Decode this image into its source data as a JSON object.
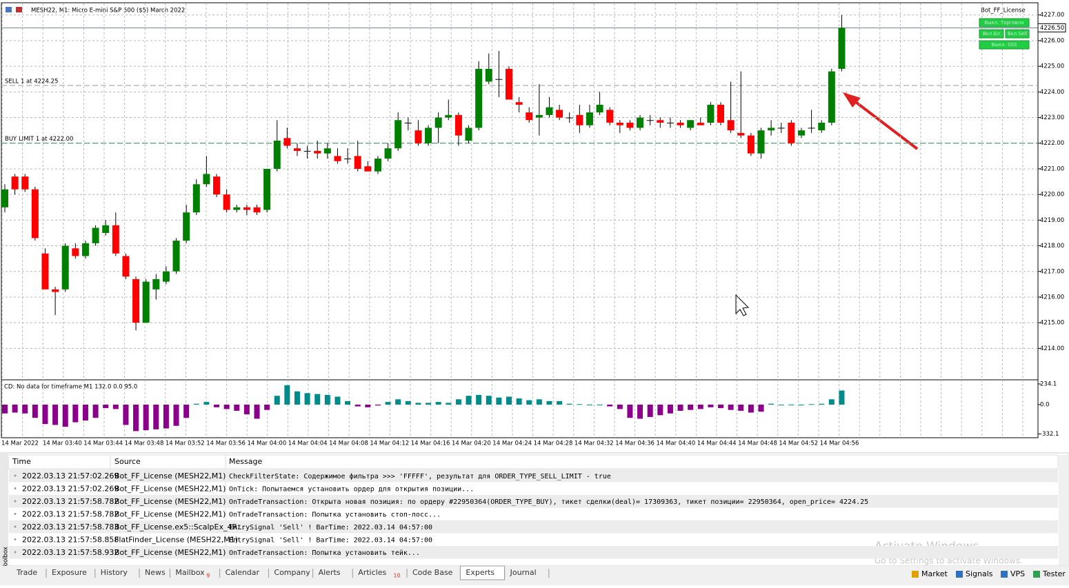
{
  "title": "MESH22, M1:  Micro E-mini S&P 500 ($5) March 2022",
  "panel": {
    "name": "Bot_FF_License",
    "buttons": [
      "Выкл. Торговля",
      "Вкл.Бл",
      "Вкл.Sell",
      "Выкл. SSS"
    ]
  },
  "chart_data": {
    "type": "candlestick",
    "ylim": [
      4212.8,
      4227.45
    ],
    "yticks": [
      {
        "value": 4227,
        "label": "4227.00"
      },
      {
        "value": 4226,
        "label": "4226.00"
      },
      {
        "value": 4225,
        "label": "4225.00"
      },
      {
        "value": 4224,
        "label": "4224.00"
      },
      {
        "value": 4223,
        "label": "4223.00"
      },
      {
        "value": 4222,
        "label": "4222.00"
      },
      {
        "value": 4221,
        "label": "4221.00"
      },
      {
        "value": 4220,
        "label": "4220.00"
      },
      {
        "value": 4219,
        "label": "4219.00"
      },
      {
        "value": 4218,
        "label": "4218.00"
      },
      {
        "value": 4217,
        "label": "4217.00"
      },
      {
        "value": 4216,
        "label": "4216.00"
      },
      {
        "value": 4215,
        "label": "4215.00"
      },
      {
        "value": 4214,
        "label": "4214.00"
      }
    ],
    "current_price": {
      "value": 4226.5,
      "label": "4226.50"
    },
    "levels": [
      {
        "label": "SELL 1 at 4224.25",
        "value": 4224.25
      },
      {
        "label": "BUY LIMIT 1 at 4222.00",
        "value": 4222.0
      }
    ],
    "grid": true,
    "up_color": "#008000",
    "down_color": "#ff0000",
    "time_labels": [
      "14 Mar 2022",
      "14 Mar 03:40",
      "14 Mar 03:44",
      "14 Mar 03:48",
      "14 Mar 03:52",
      "14 Mar 03:56",
      "14 Mar 04:00",
      "14 Mar 04:04",
      "14 Mar 04:08",
      "14 Mar 04:12",
      "14 Mar 04:16",
      "14 Mar 04:20",
      "14 Mar 04:24",
      "14 Mar 04:28",
      "14 Mar 04:32",
      "14 Mar 04:36",
      "14 Mar 04:40",
      "14 Mar 04:44",
      "14 Mar 04:48",
      "14 Mar 04:52",
      "14 Mar 04:56"
    ],
    "ohlc": [
      [
        4219.5,
        4220.4,
        4219.3,
        4220.2
      ],
      [
        4220.7,
        4220.8,
        4220.0,
        4220.2
      ],
      [
        4220.7,
        4220.8,
        4220.1,
        4220.2
      ],
      [
        4220.2,
        4220.3,
        4218.2,
        4218.3
      ],
      [
        4217.7,
        4217.9,
        4216.3,
        4216.3
      ],
      [
        4216.3,
        4216.4,
        4215.3,
        4216.2
      ],
      [
        4216.3,
        4218.1,
        4216.2,
        4218.0
      ],
      [
        4217.9,
        4218.1,
        4217.5,
        4217.6
      ],
      [
        4217.6,
        4218.2,
        4217.5,
        4218.1
      ],
      [
        4218.1,
        4218.8,
        4218.0,
        4218.7
      ],
      [
        4218.5,
        4219.0,
        4218.4,
        4218.8
      ],
      [
        4218.8,
        4219.3,
        4217.6,
        4217.7
      ],
      [
        4217.6,
        4217.7,
        4216.7,
        4216.8
      ],
      [
        4216.7,
        4216.8,
        4214.7,
        4215.0
      ],
      [
        4215.0,
        4216.7,
        4215.0,
        4216.6
      ],
      [
        4216.3,
        4216.9,
        4215.9,
        4216.7
      ],
      [
        4216.6,
        4217.2,
        4216.5,
        4217.0
      ],
      [
        4217.0,
        4218.3,
        4216.9,
        4218.2
      ],
      [
        4218.2,
        4219.6,
        4218.1,
        4219.3
      ],
      [
        4219.3,
        4220.6,
        4219.2,
        4220.4
      ],
      [
        4220.4,
        4221.5,
        4220.3,
        4220.8
      ],
      [
        4220.7,
        4220.8,
        4219.9,
        4220.0
      ],
      [
        4220.0,
        4220.2,
        4219.3,
        4219.4
      ],
      [
        4219.4,
        4219.6,
        4219.3,
        4219.5
      ],
      [
        4219.5,
        4219.6,
        4219.2,
        4219.4
      ],
      [
        4219.5,
        4219.6,
        4219.2,
        4219.3
      ],
      [
        4219.4,
        4221.0,
        4219.3,
        4221.0
      ],
      [
        4221.0,
        4222.9,
        4220.9,
        4222.1
      ],
      [
        4222.2,
        4222.6,
        4221.8,
        4221.9
      ],
      [
        4221.8,
        4222.0,
        4221.5,
        4221.7
      ],
      [
        4221.7,
        4221.9,
        4221.4,
        4221.7
      ],
      [
        4221.7,
        4222.1,
        4221.4,
        4221.6
      ],
      [
        4221.6,
        4222.0,
        4221.4,
        4221.8
      ],
      [
        4221.5,
        4221.8,
        4221.2,
        4221.3
      ],
      [
        4221.4,
        4221.8,
        4221.2,
        4221.4
      ],
      [
        4221.5,
        4222.1,
        4220.9,
        4221.0
      ],
      [
        4221.1,
        4221.3,
        4220.9,
        4220.9
      ],
      [
        4220.9,
        4221.5,
        4220.8,
        4221.4
      ],
      [
        4221.4,
        4222.0,
        4221.3,
        4221.8
      ],
      [
        4221.8,
        4223.2,
        4221.7,
        4222.9
      ],
      [
        4222.8,
        4223.0,
        4222.5,
        4222.8
      ],
      [
        4222.5,
        4222.9,
        4221.9,
        4222.0
      ],
      [
        4222.0,
        4222.7,
        4221.9,
        4222.6
      ],
      [
        4222.6,
        4223.2,
        4222.0,
        4223.0
      ],
      [
        4223.0,
        4223.7,
        4222.9,
        4223.1
      ],
      [
        4223.1,
        4223.2,
        4221.9,
        4222.3
      ],
      [
        4222.1,
        4222.7,
        4222.0,
        4222.6
      ],
      [
        4222.6,
        4225.2,
        4222.5,
        4224.9
      ],
      [
        4224.4,
        4225.5,
        4224.3,
        4224.9
      ],
      [
        4224.5,
        4225.6,
        4223.8,
        4224.5
      ],
      [
        4224.9,
        4225.0,
        4223.7,
        4223.7
      ],
      [
        4223.6,
        4223.8,
        4223.2,
        4223.5
      ],
      [
        4223.2,
        4223.4,
        4222.8,
        4222.9
      ],
      [
        4223.0,
        4224.3,
        4222.3,
        4223.1
      ],
      [
        4223.1,
        4223.8,
        4223.0,
        4223.4
      ],
      [
        4223.3,
        4223.5,
        4222.9,
        4223.0
      ],
      [
        4223.0,
        4223.2,
        4222.8,
        4223.0
      ],
      [
        4223.1,
        4223.5,
        4222.4,
        4222.7
      ],
      [
        4222.7,
        4223.5,
        4222.6,
        4223.2
      ],
      [
        4223.2,
        4224.0,
        4223.1,
        4223.5
      ],
      [
        4223.3,
        4223.4,
        4222.7,
        4222.8
      ],
      [
        4222.8,
        4222.9,
        4222.4,
        4222.7
      ],
      [
        4222.8,
        4222.9,
        4222.5,
        4222.6
      ],
      [
        4222.6,
        4223.1,
        4222.5,
        4223.0
      ],
      [
        4222.9,
        4223.1,
        4222.7,
        4222.9
      ],
      [
        4222.9,
        4223.0,
        4222.6,
        4222.8
      ],
      [
        4222.8,
        4223.0,
        4222.6,
        4222.8
      ],
      [
        4222.8,
        4222.9,
        4222.6,
        4222.7
      ],
      [
        4222.6,
        4222.9,
        4222.5,
        4222.9
      ],
      [
        4222.8,
        4223.0,
        4222.7,
        4222.7
      ],
      [
        4222.8,
        4223.6,
        4222.7,
        4223.5
      ],
      [
        4223.5,
        4223.6,
        4222.7,
        4222.8
      ],
      [
        4222.9,
        4224.4,
        4222.4,
        4222.5
      ],
      [
        4222.4,
        4224.8,
        4222.2,
        4222.3
      ],
      [
        4222.3,
        4222.4,
        4221.5,
        4221.6
      ],
      [
        4221.6,
        4222.6,
        4221.4,
        4222.5
      ],
      [
        4222.5,
        4222.9,
        4222.3,
        4222.6
      ],
      [
        4222.6,
        4222.8,
        4222.4,
        4222.6
      ],
      [
        4222.8,
        4222.9,
        4221.9,
        4222.0
      ],
      [
        4222.3,
        4222.6,
        4222.2,
        4222.5
      ],
      [
        4222.6,
        4223.3,
        4222.4,
        4222.6
      ],
      [
        4222.5,
        4222.9,
        4222.4,
        4222.8
      ],
      [
        4222.8,
        4224.9,
        4222.7,
        4224.8
      ],
      [
        4224.9,
        4227.0,
        4224.8,
        4226.5
      ]
    ]
  },
  "indicator": {
    "type": "bar",
    "label": "CD: No data for timeframe M1 132.0 0.0 95.0",
    "ylim": [
      -375,
      273
    ],
    "yticks": [
      234.1,
      {
        "value": 0,
        "label": "0.0"
      },
      -332.1
    ],
    "pos_color": "#008b8b",
    "neg_color": "#8b008b",
    "values": [
      -100,
      -90,
      -100,
      -150,
      -220,
      -230,
      -250,
      -200,
      -180,
      -150,
      -40,
      -50,
      -230,
      -300,
      -290,
      -280,
      -270,
      -240,
      -150,
      10,
      30,
      -30,
      -50,
      -70,
      -110,
      -160,
      -60,
      100,
      220,
      150,
      130,
      120,
      110,
      90,
      40,
      -20,
      -30,
      -10,
      30,
      60,
      40,
      20,
      20,
      30,
      20,
      60,
      100,
      110,
      100,
      80,
      90,
      70,
      50,
      60,
      40,
      40,
      10,
      5,
      0,
      0,
      -20,
      -50,
      -150,
      -160,
      -140,
      -120,
      -100,
      -70,
      -60,
      -50,
      -30,
      -40,
      -60,
      -70,
      -90,
      -80,
      10,
      0,
      0,
      0,
      5,
      10,
      60,
      160
    ]
  },
  "log": {
    "columns": [
      "Time",
      "Source",
      "Message"
    ],
    "rows": [
      [
        "2022.03.13 21:57:02.269",
        "Bot_FF_License (MESH22,M1)",
        "CheckFilterState: Содержимое фильтра >>> 'FFFFF', результат для ORDER_TYPE_SELL_LIMIT - true"
      ],
      [
        "2022.03.13 21:57:02.269",
        "Bot_FF_License (MESH22,M1)",
        "OnTick: Попытаемся установить ордер для открытия позиции..."
      ],
      [
        "2022.03.13 21:57:58.782",
        "Bot_FF_License (MESH22,M1)",
        "OnTradeTransaction: Открыта новая позиция: по ордеру #22950364(ORDER_TYPE_BUY), тикет сделки(deal)= 17309363, тикет позиции= 22950364, open_price= 4224.25"
      ],
      [
        "2022.03.13 21:57:58.782",
        "Bot_FF_License (MESH22,M1)",
        "OnTradeTransaction: Попытка установить стоп-лосс..."
      ],
      [
        "2022.03.13 21:57:58.783",
        "Bot_FF_License.ex5::ScalpEx_4R...",
        "EntrySignal 'Sell' ! BarTime: 2022.03.14 04:57:00"
      ],
      [
        "2022.03.13 21:57:58.858",
        "FlatFinder_License (MESH22,M1)",
        "EntrySignal 'Sell' ! BarTime: 2022.03.14 04:57:00"
      ],
      [
        "2022.03.13 21:57:58.932",
        "Bot_FF_License (MESH22,M1)",
        "OnTradeTransaction: Попытка установить тейк..."
      ]
    ]
  },
  "tabs": [
    "Trade",
    "Exposure",
    "History",
    "News",
    "Mailbox",
    "Calendar",
    "Company",
    "Alerts",
    "Articles",
    "Code Base",
    "Experts",
    "Journal"
  ],
  "badges": {
    "Mailbox": "9",
    "Articles": "10"
  },
  "active_tab": "Experts",
  "toolbox": "Toolbox",
  "status": [
    "Market",
    "Signals",
    "VPS",
    "Tester"
  ],
  "watermark": {
    "title": "Activate Windows",
    "text": "Go to Settings to activate Windows."
  }
}
